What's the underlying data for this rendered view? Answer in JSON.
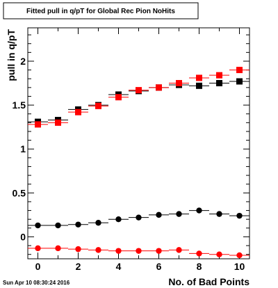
{
  "chart_data": {
    "type": "scatter",
    "title": "Fitted pull in q/pT for Global Rec Pion NoHits",
    "xlabel": "No. of Bad Points",
    "ylabel": "pull in q/pT",
    "xlim": [
      -0.5,
      10.5
    ],
    "ylim": [
      -0.25,
      2.38
    ],
    "x_ticks": [
      0,
      2,
      4,
      6,
      8,
      10
    ],
    "x_tick_labels": [
      "0",
      "2",
      "4",
      "6",
      "8",
      "10"
    ],
    "y_ticks": [
      0,
      0.5,
      1,
      1.5,
      2
    ],
    "y_tick_labels": [
      "0",
      "0.5",
      "1",
      "1.5",
      "2"
    ],
    "grid": false,
    "legend": "none",
    "footer": "Sun Apr 10 08:30:24 2016",
    "series": [
      {
        "marker": "square",
        "color": "#000000",
        "x": [
          0,
          1,
          2,
          3,
          4,
          5,
          6,
          7,
          8,
          9,
          10
        ],
        "y": [
          1.31,
          1.33,
          1.45,
          1.5,
          1.62,
          1.66,
          1.7,
          1.73,
          1.72,
          1.75,
          1.77
        ]
      },
      {
        "marker": "square",
        "color": "#ff0000",
        "x": [
          0,
          1,
          2,
          3,
          4,
          5,
          6,
          7,
          8,
          9,
          10
        ],
        "y": [
          1.28,
          1.3,
          1.42,
          1.49,
          1.59,
          1.67,
          1.7,
          1.75,
          1.81,
          1.84,
          1.9
        ]
      },
      {
        "marker": "circle",
        "color": "#000000",
        "x": [
          0,
          1,
          2,
          3,
          4,
          5,
          6,
          7,
          8,
          9,
          10
        ],
        "y": [
          0.13,
          0.13,
          0.14,
          0.16,
          0.2,
          0.22,
          0.25,
          0.26,
          0.3,
          0.26,
          0.24
        ]
      },
      {
        "marker": "circle",
        "color": "#ff0000",
        "x": [
          0,
          1,
          2,
          3,
          4,
          5,
          6,
          7,
          8,
          9,
          10
        ],
        "y": [
          -0.13,
          -0.13,
          -0.14,
          -0.15,
          -0.16,
          -0.16,
          -0.16,
          -0.15,
          -0.19,
          -0.2,
          -0.21
        ]
      }
    ]
  }
}
